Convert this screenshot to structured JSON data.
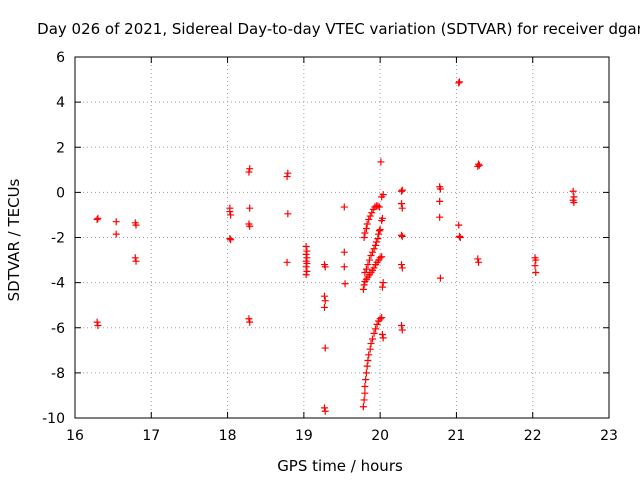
{
  "chart_data": {
    "type": "scatter",
    "title": "Day 026 of 2021, Sidereal Day-to-day VTEC variation (SDTVAR) for receiver dgar",
    "xlabel": "GPS time / hours",
    "ylabel": "SDTVAR / TECUs",
    "xlim": [
      16,
      23
    ],
    "ylim": [
      -10,
      6
    ],
    "xticks": [
      16,
      17,
      18,
      19,
      20,
      21,
      22,
      23
    ],
    "yticks": [
      -10,
      -8,
      -6,
      -4,
      -2,
      0,
      2,
      4,
      6
    ],
    "grid": true,
    "marker": "+",
    "color": "#ff0000",
    "series": [
      {
        "name": "SDTVAR",
        "points": [
          [
            16.29,
            -1.2
          ],
          [
            16.3,
            -1.15
          ],
          [
            16.29,
            -5.75
          ],
          [
            16.3,
            -5.9
          ],
          [
            16.54,
            -1.3
          ],
          [
            16.54,
            -1.85
          ],
          [
            16.79,
            -1.35
          ],
          [
            16.8,
            -1.45
          ],
          [
            16.79,
            -2.9
          ],
          [
            16.8,
            -3.05
          ],
          [
            18.03,
            -0.7
          ],
          [
            18.03,
            -0.85
          ],
          [
            18.04,
            -1.0
          ],
          [
            18.03,
            -2.05
          ],
          [
            18.04,
            -2.1
          ],
          [
            18.28,
            0.9
          ],
          [
            18.29,
            1.05
          ],
          [
            18.29,
            -0.7
          ],
          [
            18.28,
            -1.4
          ],
          [
            18.29,
            -1.5
          ],
          [
            18.28,
            -5.6
          ],
          [
            18.29,
            -5.75
          ],
          [
            18.78,
            0.7
          ],
          [
            18.79,
            0.85
          ],
          [
            18.79,
            -0.95
          ],
          [
            18.78,
            -3.1
          ],
          [
            19.03,
            -2.4
          ],
          [
            19.04,
            -2.6
          ],
          [
            19.03,
            -2.75
          ],
          [
            19.04,
            -2.9
          ],
          [
            19.03,
            -3.05
          ],
          [
            19.04,
            -3.15
          ],
          [
            19.03,
            -3.3
          ],
          [
            19.04,
            -3.5
          ],
          [
            19.03,
            -3.65
          ],
          [
            19.27,
            -3.2
          ],
          [
            19.28,
            -3.3
          ],
          [
            19.27,
            -4.6
          ],
          [
            19.28,
            -4.8
          ],
          [
            19.27,
            -5.1
          ],
          [
            19.28,
            -6.9
          ],
          [
            19.27,
            -9.55
          ],
          [
            19.28,
            -9.7
          ],
          [
            19.53,
            -0.65
          ],
          [
            19.53,
            -2.65
          ],
          [
            19.53,
            -3.3
          ],
          [
            19.54,
            -4.05
          ],
          [
            19.78,
            -9.5
          ],
          [
            19.79,
            -9.2
          ],
          [
            19.8,
            -8.9
          ],
          [
            19.8,
            -8.6
          ],
          [
            19.81,
            -8.3
          ],
          [
            19.82,
            -8.0
          ],
          [
            19.83,
            -7.7
          ],
          [
            19.84,
            -7.45
          ],
          [
            19.85,
            -7.2
          ],
          [
            19.87,
            -6.95
          ],
          [
            19.88,
            -6.7
          ],
          [
            19.9,
            -6.5
          ],
          [
            19.92,
            -6.25
          ],
          [
            19.94,
            -6.05
          ],
          [
            19.96,
            -5.85
          ],
          [
            19.98,
            -5.7
          ],
          [
            20.0,
            -5.6
          ],
          [
            20.02,
            -5.55
          ],
          [
            19.78,
            -4.3
          ],
          [
            19.79,
            -4.1
          ],
          [
            19.8,
            -3.95
          ],
          [
            19.82,
            -3.85
          ],
          [
            19.84,
            -3.75
          ],
          [
            19.86,
            -3.65
          ],
          [
            19.88,
            -3.55
          ],
          [
            19.9,
            -3.45
          ],
          [
            19.92,
            -3.35
          ],
          [
            19.94,
            -3.2
          ],
          [
            19.96,
            -3.1
          ],
          [
            19.98,
            -3.0
          ],
          [
            20.0,
            -2.9
          ],
          [
            20.02,
            -2.85
          ],
          [
            19.8,
            -3.55
          ],
          [
            19.82,
            -3.4
          ],
          [
            19.84,
            -3.2
          ],
          [
            19.86,
            -3.0
          ],
          [
            19.88,
            -2.8
          ],
          [
            19.9,
            -2.65
          ],
          [
            19.92,
            -2.5
          ],
          [
            19.94,
            -2.35
          ],
          [
            19.95,
            -2.2
          ],
          [
            19.97,
            -2.05
          ],
          [
            19.98,
            -1.85
          ],
          [
            19.99,
            -1.7
          ],
          [
            20.0,
            -1.65
          ],
          [
            19.79,
            -2.0
          ],
          [
            19.8,
            -1.8
          ],
          [
            19.82,
            -1.6
          ],
          [
            19.83,
            -1.4
          ],
          [
            19.85,
            -1.2
          ],
          [
            19.87,
            -1.05
          ],
          [
            19.89,
            -0.9
          ],
          [
            19.91,
            -0.75
          ],
          [
            19.93,
            -0.65
          ],
          [
            19.95,
            -0.6
          ],
          [
            19.97,
            -0.6
          ],
          [
            19.99,
            -0.65
          ],
          [
            20.01,
            1.35
          ],
          [
            20.02,
            -0.2
          ],
          [
            20.04,
            -0.1
          ],
          [
            20.02,
            -1.25
          ],
          [
            20.03,
            -1.15
          ],
          [
            20.04,
            -4.0
          ],
          [
            20.03,
            -4.2
          ],
          [
            20.03,
            -6.3
          ],
          [
            20.04,
            -6.45
          ],
          [
            20.28,
            0.05
          ],
          [
            20.29,
            0.1
          ],
          [
            20.28,
            -0.5
          ],
          [
            20.29,
            -0.7
          ],
          [
            20.28,
            -1.9
          ],
          [
            20.29,
            -1.95
          ],
          [
            20.28,
            -3.2
          ],
          [
            20.29,
            -3.35
          ],
          [
            20.28,
            -5.9
          ],
          [
            20.29,
            -6.1
          ],
          [
            20.78,
            0.25
          ],
          [
            20.79,
            0.15
          ],
          [
            20.78,
            -0.4
          ],
          [
            20.78,
            -1.1
          ],
          [
            20.79,
            -3.8
          ],
          [
            21.03,
            4.85
          ],
          [
            21.04,
            4.9
          ],
          [
            21.03,
            -1.45
          ],
          [
            21.04,
            -1.95
          ],
          [
            21.05,
            -2.0
          ],
          [
            21.28,
            1.15
          ],
          [
            21.29,
            1.25
          ],
          [
            21.3,
            1.2
          ],
          [
            21.28,
            -2.95
          ],
          [
            21.29,
            -3.1
          ],
          [
            22.03,
            -2.9
          ],
          [
            22.04,
            -3.0
          ],
          [
            22.03,
            -3.25
          ],
          [
            22.04,
            -3.55
          ],
          [
            22.53,
            0.05
          ],
          [
            22.54,
            -0.2
          ],
          [
            22.53,
            -0.35
          ],
          [
            22.54,
            -0.45
          ]
        ]
      }
    ]
  }
}
